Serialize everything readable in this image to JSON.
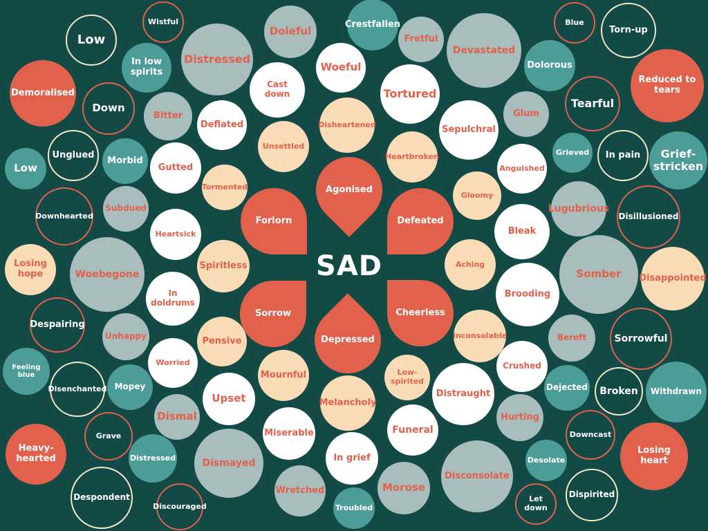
{
  "center": "SAD",
  "words": [
    "Wistful",
    "Low",
    "In low spirits",
    "Distressed",
    "Doleful",
    "Crestfallen",
    "Demoralised",
    "Down",
    "Bitter",
    "Cast down",
    "Woeful",
    "Deflated",
    "Disheartened",
    "Unsettled",
    "Unglued",
    "Morbid",
    "Low",
    "Gutted",
    "Tormented",
    "Downhearted",
    "Subdued",
    "Heartsick",
    "Losing hope",
    "Woebegone",
    "Spiritless",
    "In doldrums",
    "Despairing",
    "Unhappy",
    "Pensive",
    "Feeling blue",
    "Worried",
    "Disenchanted",
    "Mopey",
    "Upset",
    "Mournful",
    "Grave",
    "Dismal",
    "Heavy-hearted",
    "Distressed",
    "Dismayed",
    "Miserable",
    "Despondent",
    "Discouraged",
    "Wretched",
    "In grief",
    "Troubled",
    "Melancholy",
    "Forlorn",
    "Agonised",
    "Defeated",
    "Sorrow",
    "Depressed",
    "Cheerless",
    "Fretful",
    "Devastated",
    "Blue",
    "Torn-up",
    "Tortured",
    "Dolorous",
    "Reduced to tears",
    "Sepulchral",
    "Glum",
    "Tearful",
    "Heartbroken",
    "Anguished",
    "Grieved",
    "In pain",
    "Grief-stricken",
    "Gloomy",
    "Bleak",
    "Lugubrious",
    "Disillusioned",
    "Aching",
    "Somber",
    "Disappointed",
    "Brooding",
    "Inconsolable",
    "Bereft",
    "Sorrowful",
    "Low-spirited",
    "Crushed",
    "Distraught",
    "Dejected",
    "Broken",
    "Withdrawn",
    "Funeral",
    "Hurting",
    "Downcast",
    "Losing heart",
    "Desolate",
    "Morose",
    "Disconsolate",
    "Let down",
    "Dispirited"
  ]
}
